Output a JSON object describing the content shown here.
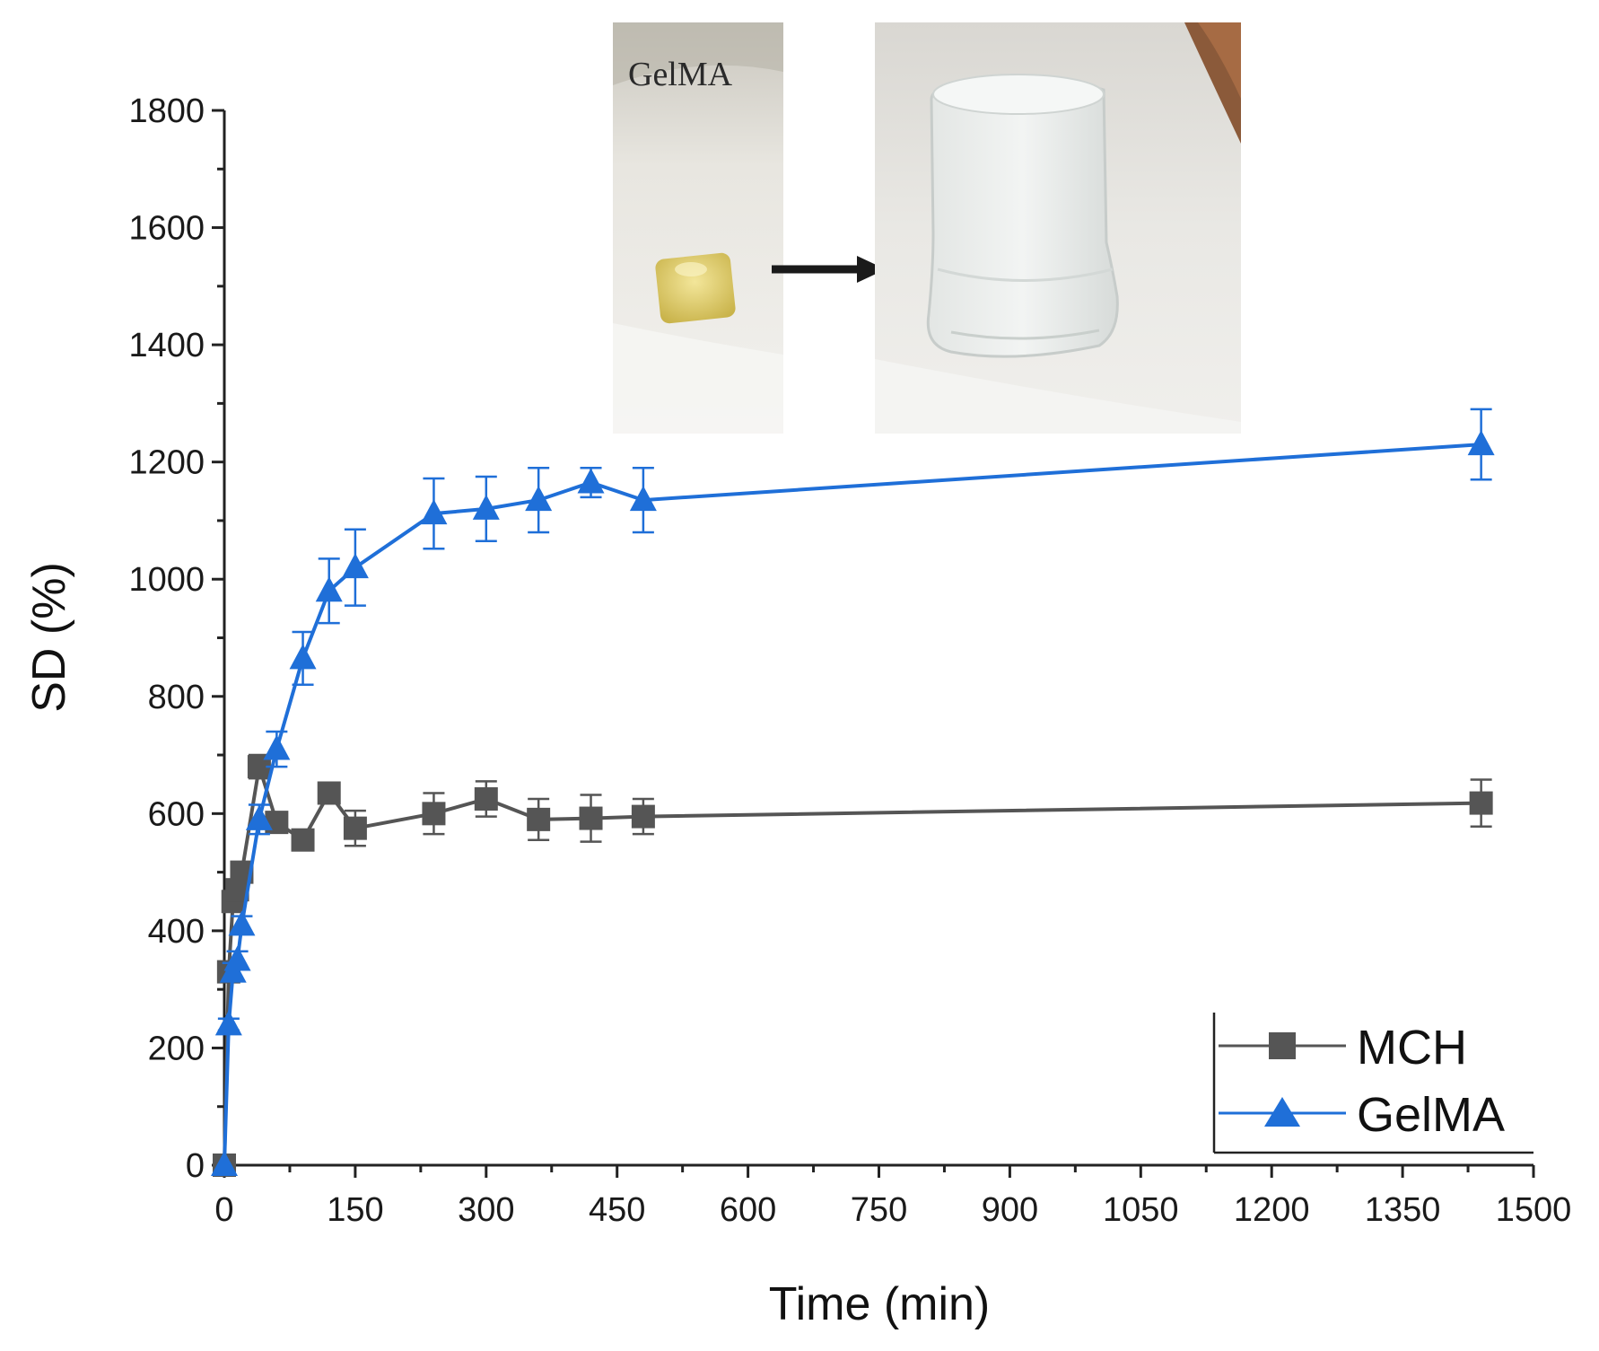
{
  "chart_data": {
    "type": "line",
    "title": "",
    "xlabel": "Time (min)",
    "ylabel": "SD (%)",
    "xlim": [
      0,
      1500
    ],
    "ylim": [
      0,
      1800
    ],
    "xticks": [
      0,
      150,
      300,
      450,
      600,
      750,
      900,
      1050,
      1200,
      1350,
      1500
    ],
    "yticks": [
      0,
      200,
      400,
      600,
      800,
      1000,
      1200,
      1400,
      1600,
      1800
    ],
    "grid": false,
    "legend_position": "bottom-right",
    "series": [
      {
        "name": "MCH",
        "color": "#555555",
        "marker": "square",
        "x": [
          0,
          5,
          10,
          15,
          20,
          40,
          60,
          90,
          120,
          150,
          240,
          300,
          360,
          420,
          480,
          1440
        ],
        "y": [
          0,
          330,
          450,
          470,
          500,
          680,
          585,
          555,
          635,
          575,
          600,
          625,
          590,
          592,
          595,
          618
        ],
        "err": [
          0,
          15,
          15,
          15,
          15,
          20,
          15,
          15,
          15,
          30,
          35,
          30,
          35,
          40,
          30,
          40
        ]
      },
      {
        "name": "GelMA",
        "color": "#1f6fd8",
        "marker": "triangle",
        "x": [
          0,
          5,
          10,
          15,
          20,
          40,
          60,
          90,
          120,
          150,
          240,
          300,
          360,
          420,
          480,
          1440
        ],
        "y": [
          0,
          240,
          330,
          350,
          410,
          590,
          710,
          865,
          980,
          1020,
          1112,
          1120,
          1135,
          1165,
          1135,
          1230
        ],
        "err": [
          0,
          10,
          15,
          15,
          15,
          25,
          30,
          45,
          55,
          65,
          60,
          55,
          55,
          25,
          55,
          60
        ]
      }
    ],
    "inset": {
      "label": "GelMA",
      "left_photo": "dried-hydrogel-cube-photo",
      "right_photo": "swollen-hydrogel-photo",
      "arrow": "right-arrow-icon"
    }
  }
}
